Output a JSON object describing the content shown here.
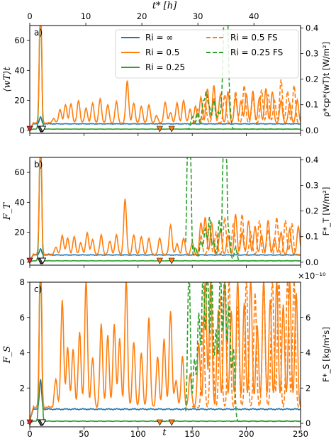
{
  "chart_data": {
    "type": "line",
    "top_axis": {
      "label": "t* [h]",
      "ticks": [
        "0",
        "10",
        "20",
        "30",
        "40"
      ],
      "hours_per_t": 0.1933
    },
    "x_axis": {
      "label": "t",
      "ticks": [
        "0",
        "50",
        "100",
        "150",
        "200",
        "250"
      ],
      "xlim": [
        0,
        250
      ]
    },
    "legend": {
      "placement": "top-right",
      "entries": [
        {
          "label": "Ri = ∞",
          "color": "#1f77b4",
          "dash": "solid"
        },
        {
          "label": "Ri = 0.5",
          "color": "#ff7f0e",
          "dash": "solid"
        },
        {
          "label": "Ri = 0.25",
          "color": "#2ca02c",
          "dash": "solid"
        },
        {
          "label": "Ri = 0.5 FS",
          "color": "#ff7f0e",
          "dash": "dashed"
        },
        {
          "label": "Ri = 0.25 FS",
          "color": "#2ca02c",
          "dash": "dashed"
        }
      ]
    },
    "panels": [
      {
        "label": "a)",
        "ylabel": "⟨wT⟩t",
        "ylim": [
          -2,
          70
        ],
        "yticks": [
          "0",
          "20",
          "40",
          "60"
        ],
        "ylabel_right": "ρ*cp*⟨wT⟩t [W/m²]",
        "yticks_right": [
          "0.0",
          "0.1",
          "0.2",
          "0.3",
          "0.4"
        ],
        "right_scale": 0.00585,
        "baselines": {
          "inf": 4.3,
          "r05": 4.8,
          "r025": 0.8
        },
        "peaks_r05": [
          [
            22,
            8
          ],
          [
            28,
            14
          ],
          [
            33,
            17
          ],
          [
            38,
            18
          ],
          [
            45,
            20
          ],
          [
            52,
            15
          ],
          [
            58,
            18
          ],
          [
            65,
            21
          ],
          [
            72,
            17
          ],
          [
            80,
            19
          ],
          [
            90,
            33
          ],
          [
            96,
            18
          ],
          [
            103,
            16
          ],
          [
            110,
            17
          ],
          [
            117,
            10
          ],
          [
            125,
            19
          ],
          [
            130,
            12
          ],
          [
            136,
            18
          ],
          [
            142,
            20
          ],
          [
            148,
            14
          ],
          [
            153,
            16
          ],
          [
            158,
            22
          ],
          [
            164,
            28
          ],
          [
            170,
            30
          ],
          [
            176,
            24
          ],
          [
            183,
            26
          ],
          [
            190,
            22
          ],
          [
            195,
            20
          ],
          [
            200,
            24
          ],
          [
            206,
            26
          ],
          [
            212,
            22
          ],
          [
            218,
            28
          ],
          [
            224,
            26
          ],
          [
            232,
            20
          ],
          [
            240,
            18
          ],
          [
            247,
            20
          ]
        ],
        "peaks_r05fs": [
          [
            155,
            14
          ],
          [
            162,
            18
          ],
          [
            170,
            22
          ],
          [
            180,
            24
          ],
          [
            190,
            26
          ],
          [
            198,
            30
          ],
          [
            206,
            22
          ],
          [
            214,
            27
          ],
          [
            220,
            24
          ],
          [
            226,
            20
          ],
          [
            232,
            34
          ],
          [
            238,
            26
          ],
          [
            244,
            30
          ]
        ],
        "peaks_r025fs": [
          [
            150,
            9
          ],
          [
            155,
            12
          ],
          [
            160,
            18
          ],
          [
            163,
            24
          ],
          [
            166,
            14
          ],
          [
            170,
            20
          ],
          [
            174,
            12
          ],
          [
            178,
            26
          ],
          [
            181,
            200
          ],
          [
            184,
            22
          ]
        ]
      },
      {
        "label": "b)",
        "ylabel": "F_T",
        "ylim": [
          -2,
          70
        ],
        "yticks": [
          "0",
          "20",
          "40",
          "60"
        ],
        "ylabel_right": "F*_T [W/m²]",
        "yticks_right": [
          "0.0",
          "0.1",
          "0.2",
          "0.3",
          "0.4"
        ],
        "right_scale": 0.00585,
        "baselines": {
          "inf": 4.8,
          "r05": 5.2,
          "r025": 0.9
        },
        "peaks_r05": [
          [
            24,
            10
          ],
          [
            30,
            18
          ],
          [
            35,
            16
          ],
          [
            41,
            17
          ],
          [
            47,
            13
          ],
          [
            53,
            20
          ],
          [
            58,
            15
          ],
          [
            66,
            18
          ],
          [
            74,
            14
          ],
          [
            80,
            18
          ],
          [
            88,
            42
          ],
          [
            96,
            18
          ],
          [
            103,
            17
          ],
          [
            110,
            16
          ],
          [
            120,
            16
          ],
          [
            130,
            25
          ],
          [
            136,
            12
          ],
          [
            142,
            16
          ],
          [
            150,
            13
          ],
          [
            158,
            26
          ],
          [
            162,
            30
          ],
          [
            168,
            26
          ],
          [
            176,
            22
          ],
          [
            183,
            18
          ],
          [
            190,
            32
          ],
          [
            196,
            20
          ],
          [
            202,
            28
          ],
          [
            208,
            24
          ],
          [
            214,
            18
          ],
          [
            220,
            28
          ],
          [
            226,
            16
          ],
          [
            232,
            20
          ],
          [
            240,
            22
          ],
          [
            248,
            24
          ]
        ],
        "peaks_r05fs": [
          [
            158,
            18
          ],
          [
            166,
            24
          ],
          [
            172,
            20
          ],
          [
            180,
            30
          ],
          [
            188,
            26
          ],
          [
            196,
            32
          ],
          [
            204,
            20
          ],
          [
            212,
            28
          ],
          [
            220,
            22
          ],
          [
            228,
            30
          ],
          [
            236,
            28
          ],
          [
            242,
            26
          ]
        ],
        "peaks_r025fs": [
          [
            147,
            200
          ],
          [
            153,
            10
          ],
          [
            158,
            14
          ],
          [
            162,
            22
          ],
          [
            166,
            30
          ],
          [
            170,
            14
          ],
          [
            175,
            28
          ],
          [
            180,
            200
          ],
          [
            184,
            18
          ],
          [
            190,
            10
          ]
        ]
      },
      {
        "label": "c)",
        "ylabel": "F_S",
        "ylim": [
          -0.2,
          8
        ],
        "yticks": [
          "0",
          "2",
          "4",
          "6",
          "8"
        ],
        "ylabel_right": "F*_S [kg/m²s]",
        "yticks_right": [
          "0",
          "2",
          "4",
          "6"
        ],
        "right_multiplier": "×10⁻¹⁰",
        "right_scale": 1.0,
        "baselines": {
          "inf": 0.8,
          "r05": 0.9,
          "r025": 0.12
        },
        "peaks_r05": [
          [
            24,
            2.5
          ],
          [
            30,
            7.0
          ],
          [
            35,
            4.3
          ],
          [
            40,
            4.2
          ],
          [
            46,
            5.2
          ],
          [
            52,
            8.2
          ],
          [
            58,
            3.7
          ],
          [
            66,
            5.6
          ],
          [
            72,
            5.0
          ],
          [
            78,
            5.6
          ],
          [
            83,
            4.8
          ],
          [
            89,
            8.2
          ],
          [
            96,
            4.6
          ],
          [
            103,
            4.0
          ],
          [
            110,
            6.0
          ],
          [
            118,
            3.8
          ],
          [
            124,
            4.8
          ],
          [
            130,
            6.4
          ],
          [
            135,
            2.4
          ],
          [
            141,
            3.8
          ],
          [
            148,
            2.8
          ],
          [
            156,
            4.6
          ],
          [
            162,
            8.2
          ],
          [
            167,
            8.2
          ],
          [
            174,
            6.4
          ],
          [
            180,
            8.2
          ],
          [
            186,
            6.4
          ],
          [
            192,
            8.2
          ],
          [
            198,
            6.8
          ],
          [
            204,
            8.2
          ],
          [
            210,
            5.6
          ],
          [
            216,
            8.2
          ],
          [
            222,
            7.0
          ],
          [
            228,
            8.2
          ],
          [
            234,
            6.8
          ],
          [
            240,
            8.2
          ],
          [
            246,
            7.4
          ]
        ],
        "peaks_r05fs": [
          [
            160,
            6.0
          ],
          [
            168,
            8.2
          ],
          [
            176,
            7.2
          ],
          [
            184,
            8.2
          ],
          [
            192,
            6.6
          ],
          [
            200,
            8.2
          ],
          [
            208,
            7.4
          ],
          [
            216,
            8.2
          ],
          [
            224,
            8.2
          ],
          [
            230,
            8.2
          ],
          [
            238,
            8.2
          ],
          [
            244,
            8.2
          ]
        ],
        "peaks_r025fs": [
          [
            147,
            9
          ],
          [
            152,
            3.6
          ],
          [
            156,
            6.2
          ],
          [
            160,
            9
          ],
          [
            164,
            9
          ],
          [
            168,
            8.4
          ],
          [
            172,
            5.2
          ],
          [
            176,
            9
          ],
          [
            180,
            9
          ],
          [
            184,
            6.6
          ],
          [
            188,
            4.2
          ]
        ]
      }
    ],
    "markers": {
      "red_t": [
        0
      ],
      "black_t": [
        10,
        11,
        12
      ],
      "orange_t": [
        120,
        131
      ]
    }
  },
  "colors": {
    "inf": "#1f77b4",
    "r05": "#ff7f0e",
    "r025": "#2ca02c",
    "red_marker": "#d62728",
    "orange_marker": "#ff7f0e",
    "black_marker": "#000000"
  }
}
